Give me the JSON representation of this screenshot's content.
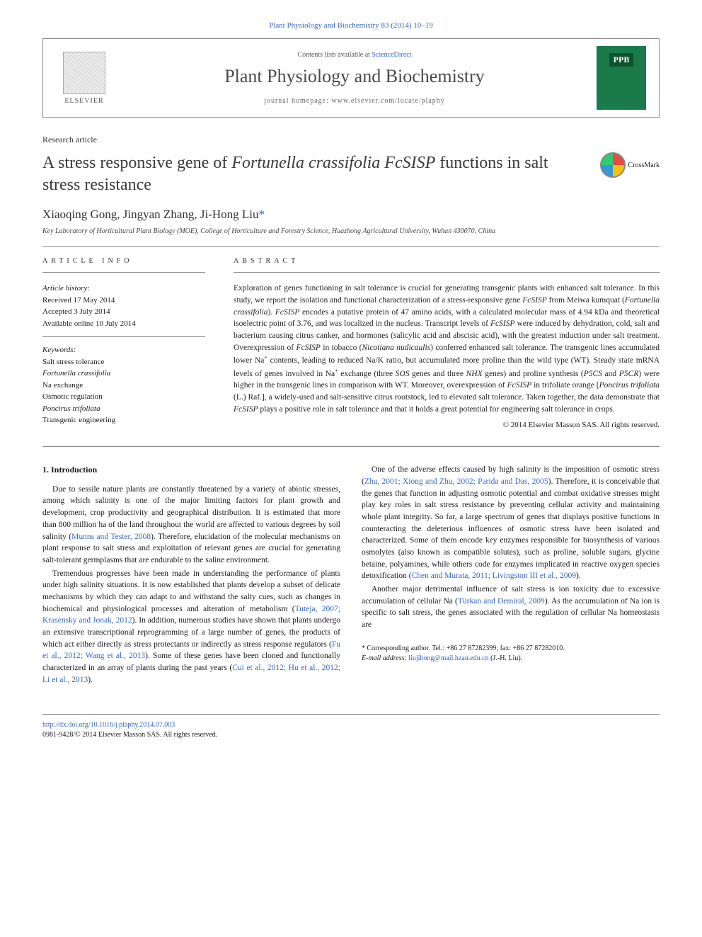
{
  "citation": "Plant Physiology and Biochemistry 83 (2014) 10–19",
  "header": {
    "publisher": "ELSEVIER",
    "contents_prefix": "Contents lists available at ",
    "contents_link": "ScienceDirect",
    "journal_name": "Plant Physiology and Biochemistry",
    "homepage_label": "journal homepage: ",
    "homepage_url": "www.elsevier.com/locate/plaphy",
    "cover_acronym": "PPB"
  },
  "article_type": "Research article",
  "title_html": "A stress responsive gene of <em>Fortunella crassifolia FcSISP</em> functions in salt stress resistance",
  "crossmark_label": "CrossMark",
  "authors_html": "Xiaoqing Gong, Jingyan Zhang, Ji-Hong Liu<span class='corr'>*</span>",
  "affiliation": "Key Laboratory of Horticultural Plant Biology (MOE), College of Horticulture and Forestry Science, Huazhong Agricultural University, Wuhan 430070, China",
  "info_label": "ARTICLE INFO",
  "abstract_label": "ABSTRACT",
  "history": {
    "label": "Article history:",
    "received": "Received 17 May 2014",
    "accepted": "Accepted 3 July 2014",
    "online": "Available online 10 July 2014"
  },
  "keywords": {
    "label": "Keywords:",
    "items": [
      {
        "text": "Salt stress tolerance",
        "italic": false
      },
      {
        "text": "Fortunella crassifolia",
        "italic": true
      },
      {
        "text": "Na exchange",
        "italic": false
      },
      {
        "text": "Osmotic regulation",
        "italic": false
      },
      {
        "text": "Poncirus trifoliata",
        "italic": true
      },
      {
        "text": "Transgenic engineering",
        "italic": false
      }
    ]
  },
  "abstract_html": "Exploration of genes functioning in salt tolerance is crucial for generating transgenic plants with enhanced salt tolerance. In this study, we report the isolation and functional characterization of a stress-responsive gene <em>FcSISP</em> from Meiwa kumquat (<em>Fortunella crassifolia</em>). <em>FcSISP</em> encodes a putative protein of 47 amino acids, with a calculated molecular mass of 4.94 kDa and theoretical isoelectric point of 3.76, and was localized in the nucleus. Transcript levels of <em>FcSISP</em> were induced by dehydration, cold, salt and bacterium causing citrus canker, and hormones (salicylic acid and abscisic acid), with the greatest induction under salt treatment. Overexpression of <em>FcSISP</em> in tobacco (<em>Nicotiana nudicaulis</em>) conferred enhanced salt tolerance. The transgenic lines accumulated lower Na<sup>+</sup> contents, leading to reduced Na/K ratio, but accumulated more proline than the wild type (WT). Steady state mRNA levels of genes involved in Na<sup>+</sup> exchange (three <em>SOS</em> genes and three <em>NHX</em> genes) and proline synthesis (<em>P5CS</em> and <em>P5CR</em>) were higher in the transgenic lines in comparison with WT. Moreover, overexpression of <em>FcSISP</em> in trifoliate orange [<em>Poncirus trifoliata</em> (L.) Raf.], a widely-used and salt-sensitive citrus rootstock, led to elevated salt tolerance. Taken together, the data demonstrate that <em>FcSISP</em> plays a positive role in salt tolerance and that it holds a great potential for engineering salt tolerance in crops.",
  "copyright": "© 2014 Elsevier Masson SAS. All rights reserved.",
  "intro": {
    "heading": "1. Introduction",
    "p1_html": "Due to sessile nature plants are constantly threatened by a variety of abiotic stresses, among which salinity is one of the major limiting factors for plant growth and development, crop productivity and geographical distribution. It is estimated that more than 800 million ha of the land throughout the world are affected to various degrees by soil salinity (<a class='ref' href='#'>Munns and Tester, 2008</a>). Therefore, elucidation of the molecular mechanisms on plant response to salt stress and exploitation of relevant genes are crucial for generating salt-tolerant germplasms that are endurable to the saline environment.",
    "p2_html": "Tremendous progresses have been made in understanding the performance of plants under high salinity situations. It is now established that plants develop a subset of delicate mechanisms by which they can adapt to and withstand the salty cues, such as changes in biochemical and physiological processes and alteration of metabolism (<a class='ref' href='#'>Tuteja, 2007; Krasensky and Jonak, 2012</a>). In addition, numerous studies have shown that plants undergo an extensive transcriptional reprogramming of a large number of genes, the products of which act either directly as stress protectants or indirectly as stress response regulators (<a class='ref' href='#'>Fu et al., 2012; Wang et al., 2013</a>). Some of these genes have been cloned and functionally characterized in an array of plants during the past years (<a class='ref' href='#'>Cui et al., 2012; Hu et al., 2012; Li et al., 2013</a>).",
    "p3_html": "One of the adverse effects caused by high salinity is the imposition of osmotic stress (<a class='ref' href='#'>Zhu, 2001; Xiong and Zhu, 2002; Parida and Das, 2005</a>). Therefore, it is conceivable that the genes that function in adjusting osmotic potential and combat oxidative stresses might play key roles in salt stress resistance by preventing cellular activity and maintaining whole plant integrity. So far, a large spectrum of genes that displays positive functions in counteracting the deleterious influences of osmotic stress have been isolated and characterized. Some of them encode key enzymes responsible for biosynthesis of various osmolytes (also known as compatible solutes), such as proline, soluble sugars, glycine betaine, polyamines, while others code for enzymes implicated in reactive oxygen species detoxification (<a class='ref' href='#'>Chen and Murata, 2011; Livingston III et al., 2009</a>).",
    "p4_html": "Another major detrimental influence of salt stress is ion toxicity due to excessive accumulation of cellular Na (<a class='ref' href='#'>Türkan and Demiral, 2009</a>). As the accumulation of Na ion is specific to salt stress, the genes associated with the regulation of cellular Na homeostasis are"
  },
  "corr_note": {
    "line1": "* Corresponding author. Tel.: +86 27 87282399; fax: +86 27 87282010.",
    "email_label": "E-mail address: ",
    "email": "liujihong@mail.hzau.edu.cn",
    "email_suffix": " (J.-H. Liu)."
  },
  "footer": {
    "doi": "http://dx.doi.org/10.1016/j.plaphy.2014.07.003",
    "issn_line": "0981-9428/© 2014 Elsevier Masson SAS. All rights reserved."
  },
  "colors": {
    "link": "#3366cc",
    "text": "#1a1a1a",
    "cover": "#1a7a4a"
  }
}
